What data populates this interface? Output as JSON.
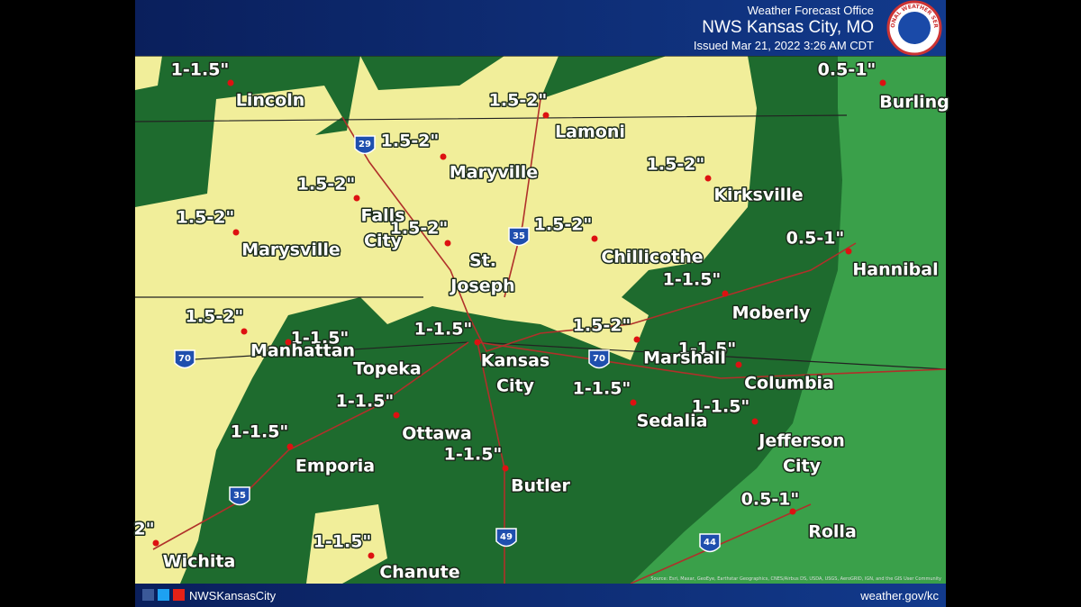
{
  "header": {
    "office": "Weather Forecast Office",
    "title": "NWS Kansas City, MO",
    "issued": "Issued Mar 21, 2022 3:26 AM CDT",
    "logo": "NATIONAL WEATHER SERVICE"
  },
  "precip_labels": [
    "1-1.5\"",
    "0.5-1\"",
    "1.5-2\"",
    "1.5-2\"",
    "1.5-2\"",
    "1.5-2\"",
    "1.5-2\"",
    "1.5-2\"",
    "1.5-2\"",
    "0.5-1\"",
    "1-1.5\"",
    "1.5-2\"",
    "1.5-2\"",
    "1-1.5\"",
    "1-1.5\"",
    "1-1.5\"",
    "1-1.5\"",
    "1-1.5\"",
    "1-1.5\"",
    "1-1.5\"",
    "1-1.5\"",
    "0.5-1\"",
    "2\"",
    "1-1.5\""
  ],
  "cities": [
    {
      "lines": [
        "Lincoln"
      ]
    },
    {
      "lines": [
        "Burling"
      ]
    },
    {
      "lines": [
        "Lamoni"
      ]
    },
    {
      "lines": [
        "Maryville"
      ]
    },
    {
      "lines": [
        "Kirksville"
      ]
    },
    {
      "lines": [
        "Falls",
        "City"
      ]
    },
    {
      "lines": [
        "Marysville"
      ]
    },
    {
      "lines": [
        "St.",
        "Joseph"
      ]
    },
    {
      "lines": [
        "Chillicothe"
      ]
    },
    {
      "lines": [
        "Hannibal"
      ]
    },
    {
      "lines": [
        "Moberly"
      ]
    },
    {
      "lines": [
        "Manhattan"
      ]
    },
    {
      "lines": [
        "Topeka"
      ]
    },
    {
      "lines": [
        "Kansas",
        "City"
      ]
    },
    {
      "lines": [
        "Marshall"
      ]
    },
    {
      "lines": [
        "Columbia"
      ]
    },
    {
      "lines": [
        "Sedalia"
      ]
    },
    {
      "lines": [
        "Ottawa"
      ]
    },
    {
      "lines": [
        "Jefferson",
        "City"
      ]
    },
    {
      "lines": [
        "Emporia"
      ]
    },
    {
      "lines": [
        "Butler"
      ]
    },
    {
      "lines": [
        "Rolla"
      ]
    },
    {
      "lines": [
        "Wichita"
      ]
    },
    {
      "lines": [
        "Chanute"
      ]
    }
  ],
  "interstates": [
    "29",
    "35",
    "70",
    "70",
    "35",
    "49",
    "44"
  ],
  "source": "Source: Esri, Maxar, GeoEye, Earthstar Geographics, CNES/Airbus DS, USDA, USGS, AeroGRID, IGN, and the GIS User Community",
  "footer": {
    "handle": "NWSKansasCity",
    "url": "weather.gov/kc"
  }
}
